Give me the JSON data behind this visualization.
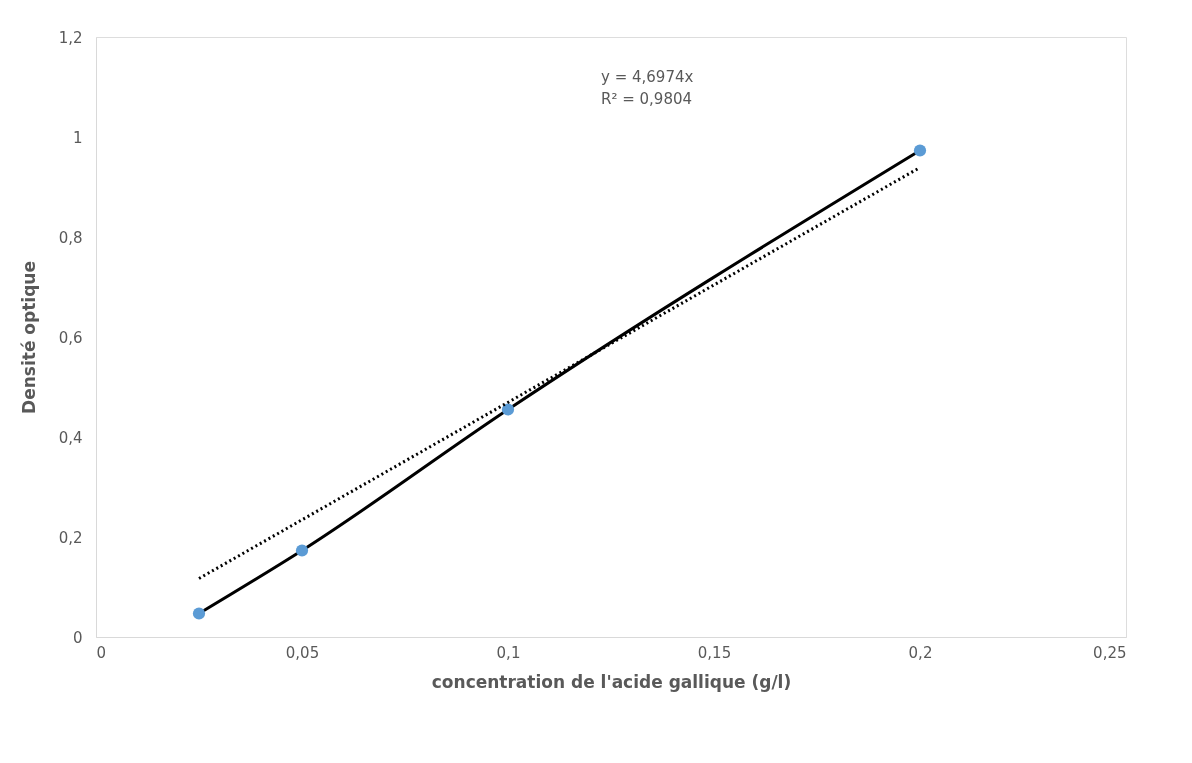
{
  "chart_data": {
    "type": "scatter",
    "xlabel": "concentration de l'acide gallique (g/l)",
    "ylabel": "Densité optique",
    "x": [
      0.025,
      0.05,
      0.1,
      0.2
    ],
    "series": [
      {
        "type": "line",
        "color": "#000000",
        "values": [
          0.047,
          0.173,
          0.455,
          0.973
        ],
        "marker": "none",
        "line_style": "solid"
      },
      {
        "color": "#5b9bd5",
        "values": [
          0.047,
          0.173,
          0.455,
          0.973
        ],
        "marker": "circle"
      },
      {
        "type": "line",
        "color": "#000000",
        "x": [
          0.025,
          0.2
        ],
        "values": [
          0.117,
          0.939
        ],
        "marker": "none",
        "line_style": "dotted"
      }
    ],
    "annotations": [
      "y = 4,6974x",
      "R² = 0,9804"
    ],
    "xlim": [
      0,
      0.25
    ],
    "xticks": [
      0,
      {
        "value": 0.05,
        "label": "0,05"
      },
      {
        "value": 0.1,
        "label": "0,1"
      },
      {
        "value": 0.15,
        "label": "0,15"
      },
      {
        "value": 0.2,
        "label": "0,2"
      },
      {
        "value": 0.25,
        "label": "0,25"
      }
    ],
    "ylim": [
      0,
      1.2
    ],
    "yticks": [
      0,
      {
        "value": 0.2,
        "label": "0,2"
      },
      {
        "value": 0.4,
        "label": "0,4"
      },
      {
        "value": 0.6,
        "label": "0,6"
      },
      {
        "value": 0.8,
        "label": "0,8"
      },
      1,
      {
        "value": 1.2,
        "label": "1,2"
      }
    ],
    "grid": false
  }
}
